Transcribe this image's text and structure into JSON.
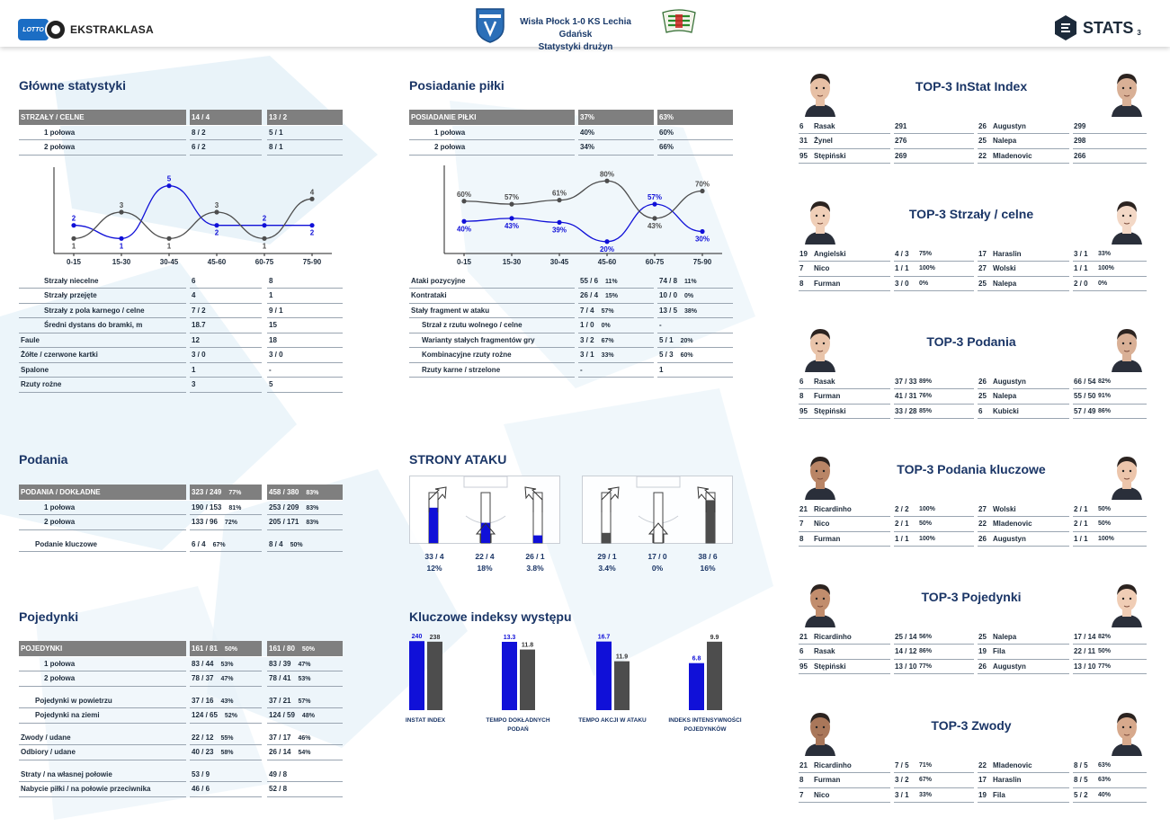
{
  "header": {
    "league_lotto": "LOTTO",
    "league_name": "EKSTRAKLASA",
    "match": "Wisła Płock 1-0 KS Lechia Gdańsk",
    "subtitle": "Statystyki drużyn",
    "brand": "STATS",
    "page": "3"
  },
  "colors": {
    "home": "#1010d8",
    "away": "#4d4d4d",
    "title": "#1a3566",
    "header_row": "#7f7f7f"
  },
  "main_stats": {
    "title": "Główne statystyki",
    "header": [
      "STRZAŁY / CELNE",
      "14 / 4",
      "13 / 2"
    ],
    "halves": [
      [
        "1 połowa",
        "8 / 2",
        "5 / 1"
      ],
      [
        "2 połowa",
        "6 / 2",
        "8 / 1"
      ]
    ],
    "rows": [
      [
        "Strzały niecelne",
        "6",
        "8"
      ],
      [
        "Strzały przejęte",
        "4",
        "1"
      ],
      [
        "Strzały z pola karnego / celne",
        "7 / 2",
        "9 / 1"
      ],
      [
        "Średni dystans do bramki, m",
        "18.7",
        "15"
      ],
      [
        "Faule",
        "12",
        "18"
      ],
      [
        "Żółte / czerwone kartki",
        "3 / 0",
        "3 / 0"
      ],
      [
        "Spalone",
        "1",
        "-"
      ],
      [
        "Rzuty rożne",
        "3",
        "5"
      ]
    ]
  },
  "possession": {
    "title": "Posiadanie piłki",
    "header": [
      "POSIADANIE PIŁKI",
      "37%",
      "63%"
    ],
    "halves": [
      [
        "1 połowa",
        "40%",
        "60%"
      ],
      [
        "2 połowa",
        "34%",
        "66%"
      ]
    ],
    "rows": [
      [
        "Ataki pozycyjne",
        "55 / 6",
        "11%",
        "74 / 8",
        "11%"
      ],
      [
        "Kontrataki",
        "26 / 4",
        "15%",
        "10 / 0",
        "0%"
      ],
      [
        "Stały fragment w ataku",
        "7 / 4",
        "57%",
        "13 / 5",
        "38%"
      ],
      [
        "Strzał z rzutu wolnego / celne",
        "1 / 0",
        "0%",
        "-",
        ""
      ],
      [
        "Warianty stałych fragmentów gry",
        "3 / 2",
        "67%",
        "5 / 1",
        "20%"
      ],
      [
        "Kombinacyjne rzuty rożne",
        "3 / 1",
        "33%",
        "5 / 3",
        "60%"
      ],
      [
        "Rzuty karne / strzelone",
        "-",
        "",
        "1",
        ""
      ]
    ]
  },
  "passes": {
    "title": "Podania",
    "header": [
      "PODANIA / DOKŁADNE",
      "323 / 249",
      "77%",
      "458 / 380",
      "83%"
    ],
    "rows": [
      [
        "1 połowa",
        "190 / 153",
        "81%",
        "253 / 209",
        "83%"
      ],
      [
        "2 połowa",
        "133 / 96",
        "72%",
        "205 / 171",
        "83%"
      ]
    ],
    "key": [
      "Podanie kluczowe",
      "6 / 4",
      "67%",
      "8 / 4",
      "50%"
    ]
  },
  "duels": {
    "title": "Pojedynki",
    "header": [
      "POJEDYNKI",
      "161 / 81",
      "50%",
      "161 / 80",
      "50%"
    ],
    "groups": [
      [
        [
          "1 połowa",
          "83 / 44",
          "53%",
          "83 / 39",
          "47%"
        ],
        [
          "2 połowa",
          "78 / 37",
          "47%",
          "78 / 41",
          "53%"
        ]
      ],
      [
        [
          "Pojedynki w powietrzu",
          "37 / 16",
          "43%",
          "37 / 21",
          "57%"
        ],
        [
          "Pojedynki na ziemi",
          "124 / 65",
          "52%",
          "124 / 59",
          "48%"
        ]
      ],
      [
        [
          "Zwody / udane",
          "22 / 12",
          "55%",
          "37 / 17",
          "46%"
        ],
        [
          "Odbiory / udane",
          "40 / 23",
          "58%",
          "26 / 14",
          "54%"
        ]
      ],
      [
        [
          "Straty / na własnej połowie",
          "53 / 9",
          "",
          "49 / 8",
          ""
        ],
        [
          "Nabycie piłki / na połowie przeciwnika",
          "46 / 6",
          "",
          "52 / 8",
          ""
        ]
      ]
    ]
  },
  "shots_chart": {
    "type": "line",
    "categories": [
      "0-15",
      "15-30",
      "30-45",
      "45-60",
      "60-75",
      "75-90"
    ],
    "series": [
      {
        "values": [
          2,
          1,
          5,
          2,
          2,
          2
        ],
        "color": "#1010d8"
      },
      {
        "values": [
          1,
          3,
          1,
          3,
          1,
          4
        ],
        "color": "#4d4d4d"
      }
    ],
    "ylim": [
      0,
      6
    ]
  },
  "possession_chart": {
    "type": "line",
    "categories": [
      "0-15",
      "15-30",
      "30-45",
      "45-60",
      "60-75",
      "75-90"
    ],
    "series": [
      {
        "values": [
          40,
          43,
          39,
          20,
          57,
          30
        ],
        "color": "#1010d8"
      },
      {
        "values": [
          60,
          57,
          61,
          80,
          43,
          70
        ],
        "color": "#4d4d4d"
      }
    ],
    "ylim": [
      10,
      90
    ]
  },
  "chart_data": [
    {
      "type": "line",
      "categories": [
        "0-15",
        "15-30",
        "30-45",
        "45-60",
        "60-75",
        "75-90"
      ],
      "series": [
        {
          "values": [
            2,
            1,
            5,
            2,
            2,
            2
          ]
        },
        {
          "values": [
            1,
            3,
            1,
            3,
            1,
            4
          ]
        }
      ]
    },
    {
      "type": "line",
      "categories": [
        "0-15",
        "15-30",
        "30-45",
        "45-60",
        "60-75",
        "75-90"
      ],
      "series": [
        {
          "values": [
            40,
            43,
            39,
            20,
            57,
            30
          ]
        },
        {
          "values": [
            60,
            57,
            61,
            80,
            43,
            70
          ]
        }
      ]
    },
    {
      "type": "bar",
      "categories": [
        "INSTAT INDEX",
        "TEMPO DOKŁADNYCH PODAŃ",
        "TEMPO AKCJI W ATAKU",
        "INDEKS INTENSYWNOŚCI POJEDYNKÓW"
      ],
      "series": [
        {
          "values": [
            240,
            13.3,
            16.7,
            6.8
          ]
        },
        {
          "values": [
            238,
            11.8,
            11.9,
            9.9
          ]
        }
      ]
    }
  ],
  "attack_sides": {
    "title": "STRONY ATAKU",
    "home": [
      {
        "value": "33 / 4",
        "pct": "12%",
        "fill": 0.7
      },
      {
        "value": "22 / 4",
        "pct": "18%",
        "fill": 0.4
      },
      {
        "value": "26 / 1",
        "pct": "3.8%",
        "fill": 0.15
      }
    ],
    "away": [
      {
        "value": "29 / 1",
        "pct": "3.4%",
        "fill": 0.2
      },
      {
        "value": "17 / 0",
        "pct": "0%",
        "fill": 0
      },
      {
        "value": "38 / 6",
        "pct": "16%",
        "fill": 0.85
      }
    ]
  },
  "key_indexes": {
    "title": "Kluczowe indeksy występu",
    "items": [
      {
        "label": [
          "INSTAT INDEX"
        ],
        "home": 240,
        "away": 238,
        "home_label": "240",
        "away_label": "238",
        "max": 250
      },
      {
        "label": [
          "TEMPO DOKŁADNYCH",
          "PODAŃ"
        ],
        "home": 13.3,
        "away": 11.8,
        "home_label": "13.3",
        "away_label": "11.8",
        "max": 14
      },
      {
        "label": [
          "TEMPO AKCJI W ATAKU"
        ],
        "home": 16.7,
        "away": 11.9,
        "home_label": "16.7",
        "away_label": "11.9",
        "max": 17.5
      },
      {
        "label": [
          "INDEKS INTENSYWNOŚCI",
          "POJEDYNKÓW"
        ],
        "home": 6.8,
        "away": 9.9,
        "home_label": "6.8",
        "away_label": "9.9",
        "max": 10.4
      }
    ]
  },
  "tops": [
    {
      "title": "TOP-3 InStat Index",
      "rows": [
        [
          "6",
          "Rasak",
          "291",
          "",
          "26",
          "Augustyn",
          "299",
          ""
        ],
        [
          "31",
          "Żynel",
          "276",
          "",
          "25",
          "Nalepa",
          "298",
          ""
        ],
        [
          "95",
          "Stępiński",
          "269",
          "",
          "22",
          "Mladenovic",
          "266",
          ""
        ]
      ]
    },
    {
      "title": "TOP-3 Strzały / celne",
      "rows": [
        [
          "19",
          "Angielski",
          "4 / 3",
          "75%",
          "17",
          "Haraslin",
          "3 / 1",
          "33%"
        ],
        [
          "7",
          "Nico",
          "1 / 1",
          "100%",
          "27",
          "Wolski",
          "1 / 1",
          "100%"
        ],
        [
          "8",
          "Furman",
          "3 / 0",
          "0%",
          "25",
          "Nalepa",
          "2 / 0",
          "0%"
        ]
      ]
    },
    {
      "title": "TOP-3 Podania",
      "rows": [
        [
          "6",
          "Rasak",
          "37 / 33",
          "89%",
          "26",
          "Augustyn",
          "66 / 54",
          "82%"
        ],
        [
          "8",
          "Furman",
          "41 / 31",
          "76%",
          "25",
          "Nalepa",
          "55 / 50",
          "91%"
        ],
        [
          "95",
          "Stępiński",
          "33 / 28",
          "85%",
          "6",
          "Kubicki",
          "57 / 49",
          "86%"
        ]
      ]
    },
    {
      "title": "TOP-3 Podania kluczowe",
      "rows": [
        [
          "21",
          "Ricardinho",
          "2 / 2",
          "100%",
          "27",
          "Wolski",
          "2 / 1",
          "50%"
        ],
        [
          "7",
          "Nico",
          "2 / 1",
          "50%",
          "22",
          "Mladenovic",
          "2 / 1",
          "50%"
        ],
        [
          "8",
          "Furman",
          "1 / 1",
          "100%",
          "26",
          "Augustyn",
          "1 / 1",
          "100%"
        ]
      ]
    },
    {
      "title": "TOP-3 Pojedynki",
      "rows": [
        [
          "21",
          "Ricardinho",
          "25 / 14",
          "56%",
          "25",
          "Nalepa",
          "17 / 14",
          "82%"
        ],
        [
          "6",
          "Rasak",
          "14 / 12",
          "86%",
          "19",
          "Fila",
          "22 / 11",
          "50%"
        ],
        [
          "95",
          "Stępiński",
          "13 / 10",
          "77%",
          "26",
          "Augustyn",
          "13 / 10",
          "77%"
        ]
      ]
    },
    {
      "title": "TOP-3 Zwody",
      "rows": [
        [
          "21",
          "Ricardinho",
          "7 / 5",
          "71%",
          "22",
          "Mladenovic",
          "8 / 5",
          "63%"
        ],
        [
          "8",
          "Furman",
          "3 / 2",
          "67%",
          "17",
          "Haraslin",
          "8 / 5",
          "63%"
        ],
        [
          "7",
          "Nico",
          "3 / 1",
          "33%",
          "19",
          "Fila",
          "5 / 2",
          "40%"
        ]
      ]
    }
  ]
}
